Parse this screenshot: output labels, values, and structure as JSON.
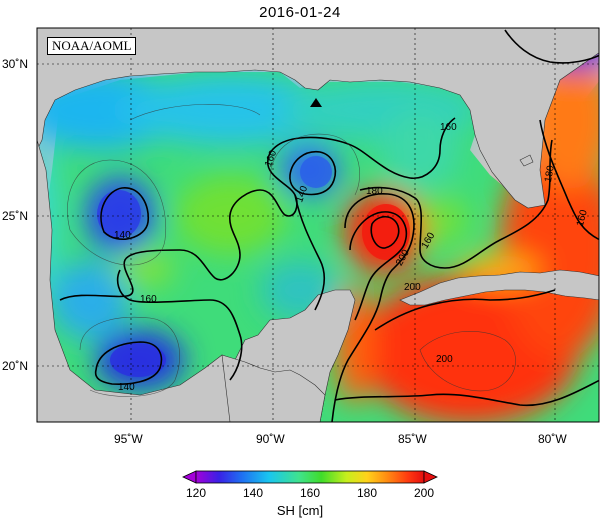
{
  "title": "2016-01-24",
  "credit": "NOAA/AOML",
  "y_ticks": [
    "30˚N",
    "25˚N",
    "20˚N"
  ],
  "x_ticks": [
    "95˚W",
    "90˚W",
    "85˚W",
    "80˚W"
  ],
  "contour_labels": [
    "140",
    "140",
    "140",
    "160",
    "160",
    "160",
    "160",
    "180",
    "180",
    "200",
    "200",
    "200",
    "160"
  ],
  "colorbar": {
    "label": "SH [cm]",
    "ticks": [
      "120",
      "140",
      "160",
      "180",
      "200"
    ],
    "colors": [
      "#a400d9",
      "#3a20e6",
      "#1f6ff2",
      "#19c6ef",
      "#3fe28f",
      "#3fdc2a",
      "#c6ef1d",
      "#ffd21a",
      "#ff8a12",
      "#ff3a10",
      "#e60f0f"
    ]
  },
  "marker": "triangle-marker",
  "colors": {
    "land": "#c6c6c6",
    "grid": "#000000"
  }
}
